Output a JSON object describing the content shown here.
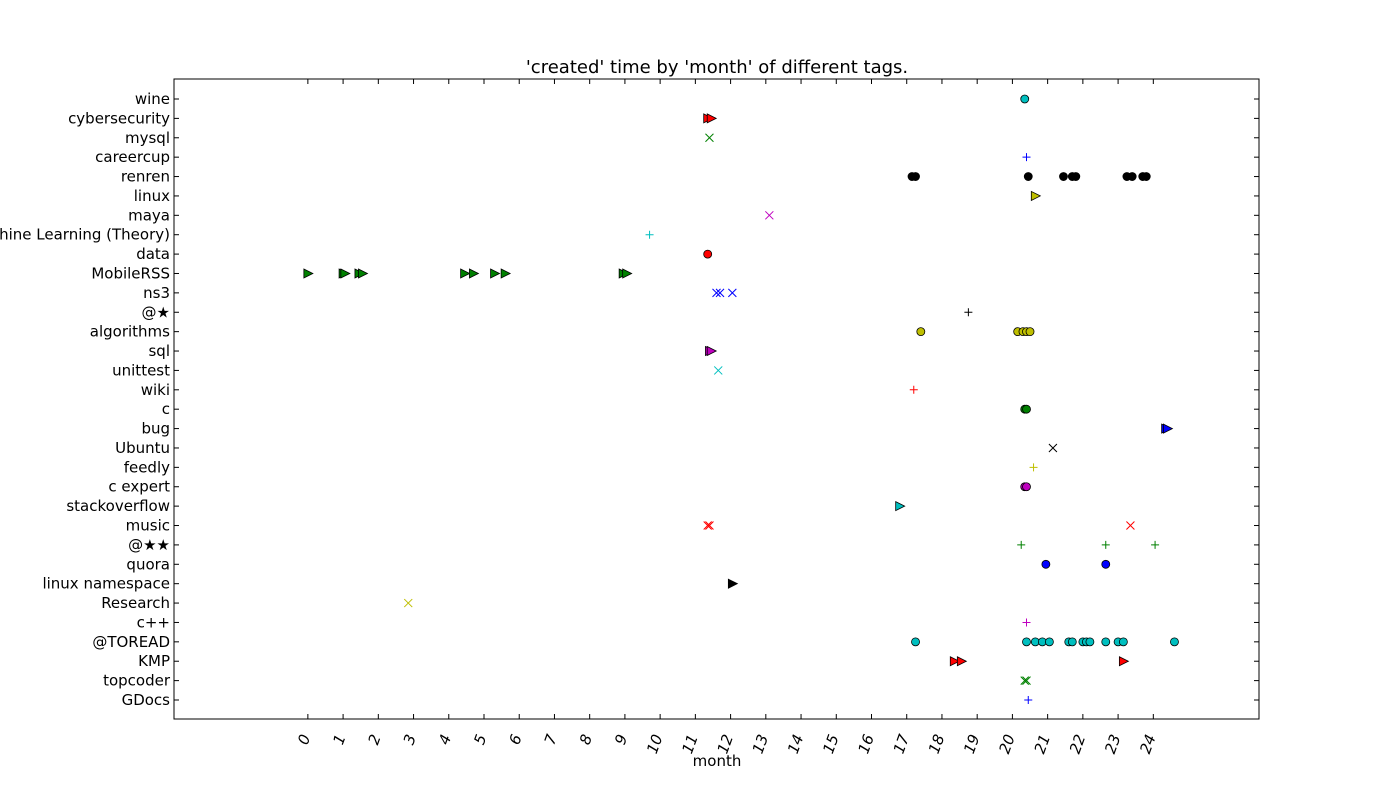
{
  "chart_data": {
    "type": "scatter",
    "title": "'created' time by 'month' of different tags.",
    "xlabel": "month",
    "ylabel": "",
    "xlim": [
      -3.8,
      27.0
    ],
    "x_ticks": [
      0,
      1,
      2,
      3,
      4,
      5,
      6,
      7,
      8,
      9,
      10,
      11,
      12,
      13,
      14,
      15,
      16,
      17,
      18,
      19,
      20,
      21,
      22,
      23,
      24
    ],
    "grid": false,
    "categories": [
      "GDocs",
      "topcoder",
      "KMP",
      "@TOREAD",
      "c++",
      "Research",
      "linux namespace",
      "quora",
      "@★★",
      "music",
      "stackoverflow",
      "c expert",
      "feedly",
      "Ubuntu",
      "bug",
      "c",
      "wiki",
      "unittest",
      "sql",
      "algorithms",
      "@★",
      "ns3",
      "MobileRSS",
      "data",
      "Machine Learning (Theory)",
      "maya",
      "linux",
      "renren",
      "careercup",
      "mysql",
      "cybersecurity",
      "wine"
    ],
    "series": [
      {
        "category": "GDocs",
        "marker": "+",
        "color": "#0000ff",
        "x": [
          20.45
        ]
      },
      {
        "category": "topcoder",
        "marker": "x",
        "color": "#008000",
        "x": [
          20.35,
          20.4
        ]
      },
      {
        "category": "KMP",
        "marker": ">",
        "color": "#ff0000",
        "x": [
          18.35,
          18.55,
          23.15
        ]
      },
      {
        "category": "@TOREAD",
        "marker": "o",
        "color": "#00bfbf",
        "x": [
          17.25,
          20.4,
          20.65,
          20.85,
          21.05,
          21.6,
          21.7,
          22.0,
          22.1,
          22.2,
          22.65,
          23.0,
          23.15,
          24.6
        ]
      },
      {
        "category": "c++",
        "marker": "+",
        "color": "#bf00bf",
        "x": [
          20.4
        ]
      },
      {
        "category": "Research",
        "marker": "x",
        "color": "#bfbf00",
        "x": [
          2.85
        ]
      },
      {
        "category": "linux namespace",
        "marker": ">",
        "color": "#000000",
        "x": [
          12.05
        ]
      },
      {
        "category": "quora",
        "marker": "o",
        "color": "#0000ff",
        "x": [
          20.95,
          22.65
        ]
      },
      {
        "category": "@★★",
        "marker": "+",
        "color": "#008000",
        "x": [
          20.25,
          22.65,
          24.05
        ]
      },
      {
        "category": "music",
        "marker": "x",
        "color": "#ff0000",
        "x": [
          11.35,
          11.4,
          23.35
        ]
      },
      {
        "category": "stackoverflow",
        "marker": ">",
        "color": "#00bfbf",
        "x": [
          16.8
        ]
      },
      {
        "category": "c expert",
        "marker": "o",
        "color": "#bf00bf",
        "x": [
          20.35,
          20.4
        ]
      },
      {
        "category": "feedly",
        "marker": "+",
        "color": "#bfbf00",
        "x": [
          20.6
        ]
      },
      {
        "category": "Ubuntu",
        "marker": "x",
        "color": "#000000",
        "x": [
          21.15
        ]
      },
      {
        "category": "bug",
        "marker": ">",
        "color": "#0000ff",
        "x": [
          24.35,
          24.4
        ]
      },
      {
        "category": "c",
        "marker": "o",
        "color": "#008000",
        "x": [
          20.35,
          20.4
        ]
      },
      {
        "category": "wiki",
        "marker": "+",
        "color": "#ff0000",
        "x": [
          17.2
        ]
      },
      {
        "category": "unittest",
        "marker": "x",
        "color": "#00bfbf",
        "x": [
          11.65
        ]
      },
      {
        "category": "sql",
        "marker": ">",
        "color": "#bf00bf",
        "x": [
          11.4,
          11.45
        ]
      },
      {
        "category": "algorithms",
        "marker": "o",
        "color": "#bfbf00",
        "x": [
          17.4,
          20.15,
          20.3,
          20.4,
          20.5
        ]
      },
      {
        "category": "@★",
        "marker": "+",
        "color": "#000000",
        "x": [
          18.75
        ]
      },
      {
        "category": "ns3",
        "marker": "x",
        "color": "#0000ff",
        "x": [
          11.6,
          11.7,
          12.05
        ]
      },
      {
        "category": "MobileRSS",
        "marker": ">",
        "color": "#008000",
        "x": [
          0.0,
          1.0,
          1.05,
          1.45,
          1.55,
          4.45,
          4.7,
          5.3,
          5.6,
          8.95,
          9.05
        ]
      },
      {
        "category": "data",
        "marker": "o",
        "color": "#ff0000",
        "x": [
          11.35
        ]
      },
      {
        "category": "Machine Learning (Theory)",
        "marker": "+",
        "color": "#00bfbf",
        "x": [
          9.7
        ]
      },
      {
        "category": "maya",
        "marker": "x",
        "color": "#bf00bf",
        "x": [
          13.1
        ]
      },
      {
        "category": "linux",
        "marker": ">",
        "color": "#bfbf00",
        "x": [
          20.65
        ]
      },
      {
        "category": "renren",
        "marker": "o",
        "color": "#000000",
        "x": [
          17.15,
          17.25,
          20.45,
          21.45,
          21.7,
          21.8,
          23.25,
          23.4,
          23.7,
          23.8
        ]
      },
      {
        "category": "careercup",
        "marker": "+",
        "color": "#0000ff",
        "x": [
          20.4
        ]
      },
      {
        "category": "mysql",
        "marker": "x",
        "color": "#008000",
        "x": [
          11.4
        ]
      },
      {
        "category": "cybersecurity",
        "marker": ">",
        "color": "#ff0000",
        "x": [
          11.35,
          11.45
        ]
      },
      {
        "category": "wine",
        "marker": "o",
        "color": "#00bfbf",
        "x": [
          20.35
        ]
      }
    ]
  }
}
